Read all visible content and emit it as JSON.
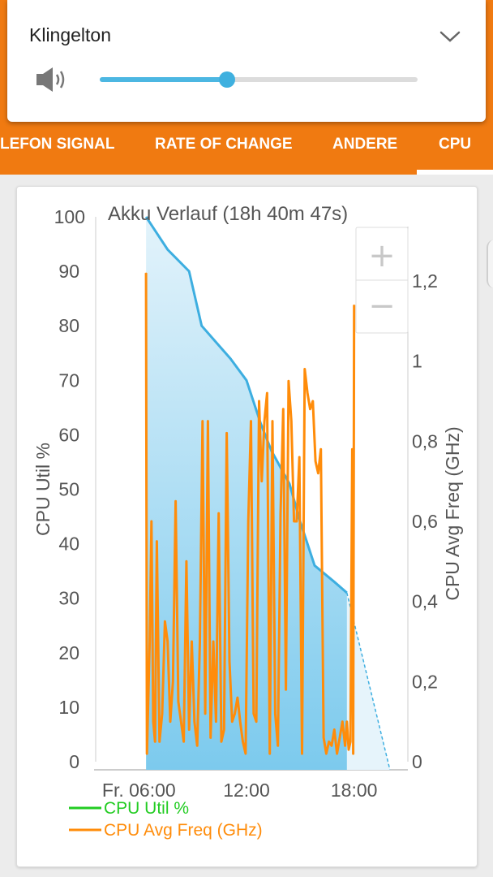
{
  "volume_panel": {
    "title": "Klingelton",
    "level": 0.4,
    "icons": [
      "speaker-icon",
      "chevron-down-icon"
    ]
  },
  "tabs": [
    {
      "label": "LEFON SIGNAL",
      "active": false
    },
    {
      "label": "RATE OF CHANGE",
      "active": false
    },
    {
      "label": "ANDERE",
      "active": false
    },
    {
      "label": "CPU",
      "active": true
    }
  ],
  "colors": {
    "accent": "#f07a11",
    "battery_line": "#3daee0",
    "cpu_util": "#22cc22",
    "cpu_freq": "#ff8c0a"
  },
  "zoom_controls": {
    "plus": "+",
    "minus": "−"
  },
  "chart_data": {
    "type": "line",
    "title": "Akku Verlauf (18h 40m 47s)",
    "ylabel": "CPU Util %",
    "y2label": "CPU Avg Freq (GHz)",
    "x_tick_labels": [
      "Fr. 06:00",
      "12:00",
      "18:00"
    ],
    "x_ticks_hours": [
      6,
      12,
      18
    ],
    "xlim_hours": [
      3.5,
      21
    ],
    "y_ticks": [
      "100",
      "90",
      "80",
      "70",
      "60",
      "50",
      "40",
      "30",
      "20",
      "10",
      "0"
    ],
    "ylim": [
      0,
      100
    ],
    "y2_ticks": [
      "1,2",
      "1",
      "0,8",
      "0,6",
      "0,4",
      "0,2",
      "0"
    ],
    "y2lim": [
      0,
      1.36
    ],
    "legend": [
      {
        "name": "CPU Util %",
        "color": "#22cc22"
      },
      {
        "name": "CPU Avg Freq (GHz)",
        "color": "#ff8c0a"
      }
    ],
    "battery_series": {
      "x": [
        6.4,
        6.8,
        7.6,
        8.8,
        9.5,
        10.3,
        11.1,
        12.0,
        12.8,
        13.4,
        14.4,
        15.0,
        15.8,
        16.9,
        17.6
      ],
      "y": [
        100,
        98,
        94,
        90,
        80,
        77,
        74,
        70,
        62,
        57,
        51,
        44,
        36,
        33,
        31
      ]
    },
    "battery_projection": {
      "x": [
        17.6,
        20.0
      ],
      "y": [
        31,
        0
      ]
    },
    "series": [
      {
        "name": "CPU Avg Freq (GHz)",
        "x": [
          6.4,
          6.45,
          6.6,
          6.7,
          6.8,
          6.9,
          7.0,
          7.15,
          7.3,
          7.45,
          7.6,
          7.75,
          7.9,
          8.05,
          8.2,
          8.35,
          8.5,
          8.65,
          8.8,
          8.95,
          9.1,
          9.25,
          9.4,
          9.55,
          9.7,
          9.85,
          10.0,
          10.15,
          10.3,
          10.45,
          10.6,
          10.75,
          10.9,
          11.05,
          11.2,
          11.35,
          11.5,
          11.65,
          11.8,
          11.95,
          12.1,
          12.25,
          12.4,
          12.55,
          12.7,
          12.85,
          13.0,
          13.15,
          13.3,
          13.45,
          13.6,
          13.75,
          13.9,
          14.05,
          14.2,
          14.35,
          14.5,
          14.65,
          14.8,
          14.95,
          15.1,
          15.25,
          15.4,
          15.55,
          15.7,
          15.85,
          16.0,
          16.15,
          16.3,
          16.45,
          16.6,
          16.75,
          16.9,
          17.05,
          17.2,
          17.35,
          17.5,
          17.6,
          17.7,
          17.8,
          17.9,
          17.95,
          18.0
        ],
        "y": [
          1.22,
          0.02,
          0.3,
          0.6,
          0.1,
          0.05,
          0.55,
          0.05,
          0.12,
          0.35,
          0.3,
          0.1,
          0.2,
          0.65,
          0.15,
          0.1,
          0.05,
          0.5,
          0.08,
          0.3,
          0.1,
          0.04,
          0.3,
          0.85,
          0.12,
          0.85,
          0.06,
          0.3,
          0.1,
          0.62,
          0.05,
          0.08,
          0.82,
          0.25,
          0.1,
          0.12,
          0.16,
          0.1,
          0.05,
          0.02,
          0.6,
          0.85,
          0.12,
          0.1,
          0.9,
          0.7,
          0.85,
          0.92,
          0.02,
          0.85,
          0.12,
          0.04,
          0.62,
          0.88,
          0.18,
          0.95,
          0.85,
          0.6,
          0.6,
          0.76,
          0.02,
          0.98,
          0.92,
          0.88,
          0.9,
          0.75,
          0.72,
          0.78,
          0.06,
          0.02,
          0.05,
          0.04,
          0.08,
          0.02,
          0.06,
          0.1,
          0.04,
          0.1,
          0.03,
          0.05,
          0.78,
          0.02,
          1.14
        ]
      }
    ]
  }
}
